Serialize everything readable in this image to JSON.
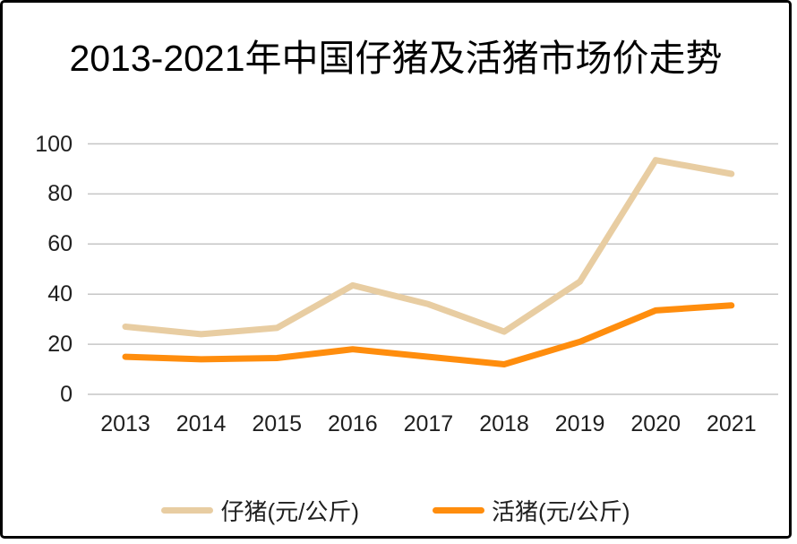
{
  "title": "2013-2021年中国仔猪及活猪市场价走势",
  "colors": {
    "piglet_line": "#E8CDA2",
    "hog_line": "#FF8D0D",
    "gridline": "#C6C6C6",
    "axis_text": "#1F1F1F",
    "frame_border": "#000000",
    "background": "#FFFFFF"
  },
  "chart_data": {
    "type": "line",
    "title": "2013-2021年中国仔猪及活猪市场价走势",
    "categories": [
      "2013",
      "2014",
      "2015",
      "2016",
      "2017",
      "2018",
      "2019",
      "2020",
      "2021"
    ],
    "series": [
      {
        "name": "仔猪(元/公斤)",
        "color": "#E8CDA2",
        "values": [
          27,
          24,
          26.5,
          43.5,
          36,
          25,
          45,
          93.5,
          88
        ]
      },
      {
        "name": "活猪(元/公斤)",
        "color": "#FF8D0D",
        "values": [
          15,
          14,
          14.5,
          18,
          15,
          12,
          21,
          33.5,
          35.5
        ]
      }
    ],
    "xlabel": "",
    "ylabel": "",
    "y_ticks": [
      0,
      20,
      40,
      60,
      80,
      100
    ],
    "ylim": [
      0,
      100
    ],
    "grid": true,
    "legend_position": "bottom"
  }
}
